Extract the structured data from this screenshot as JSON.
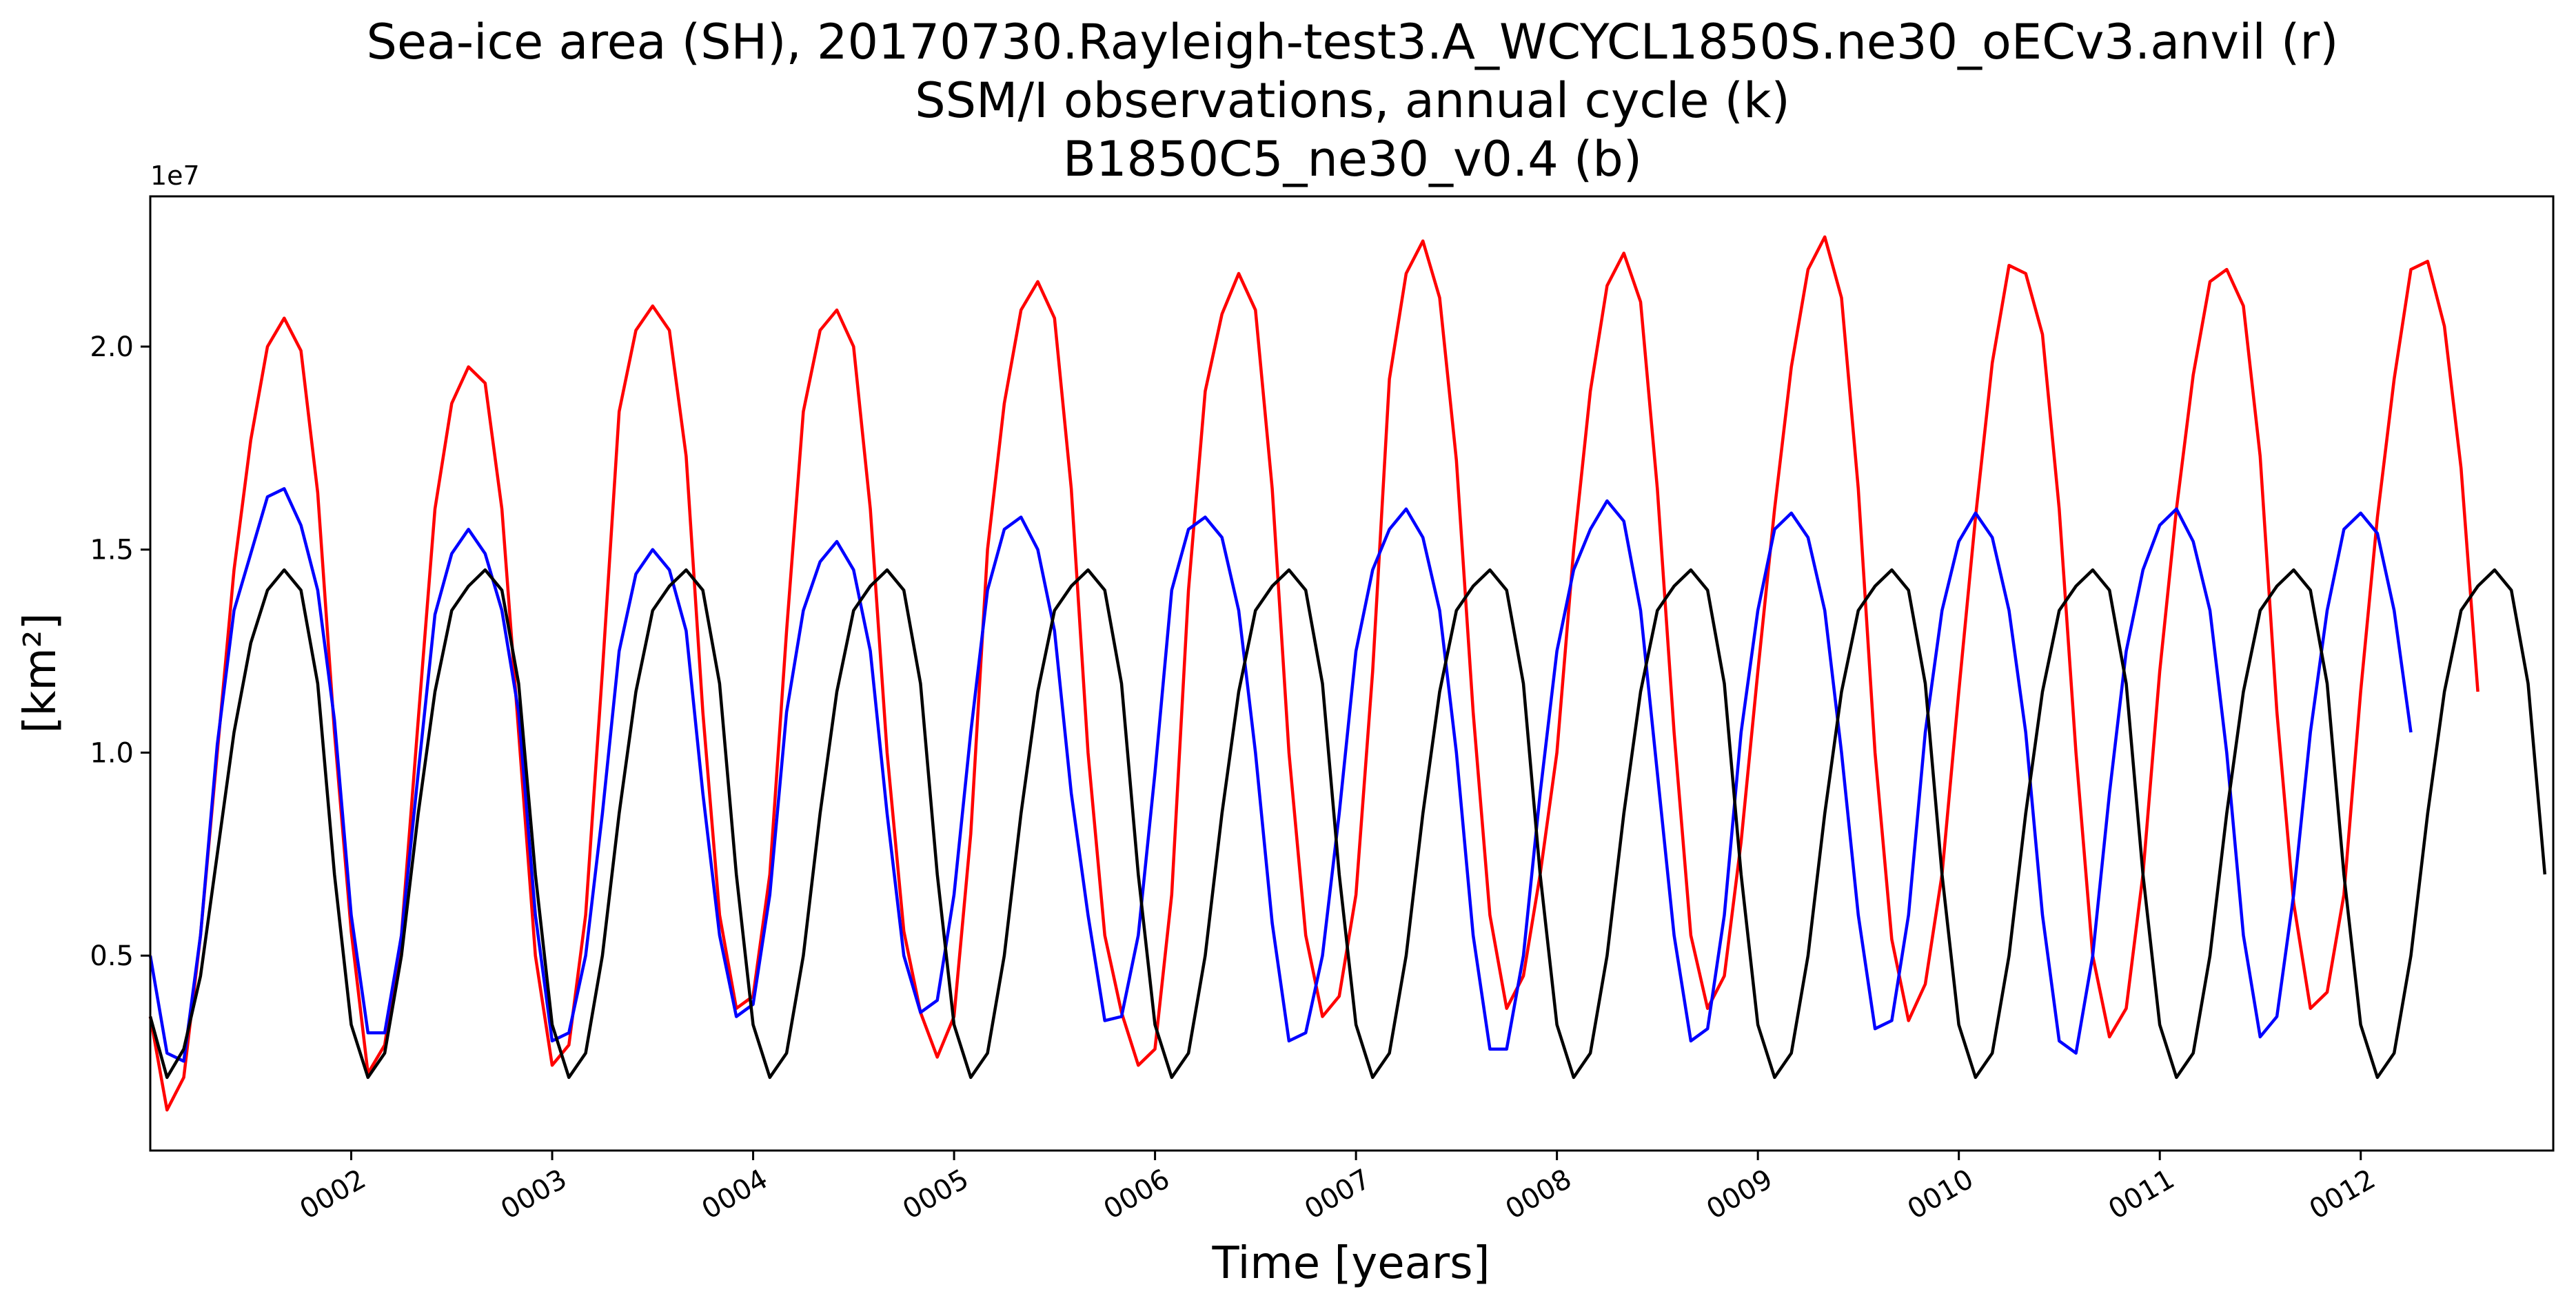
{
  "chart_data": {
    "type": "line",
    "title_lines": [
      "Sea-ice area (SH), 20170730.Rayleigh-test3.A_WCYCL1850S.ne30_oECv3.anvil (r)",
      "SSM/I observations, annual cycle (k)",
      "B1850C5_ne30_v0.4 (b)"
    ],
    "xlabel": "Time [years]",
    "ylabel": "[km²]",
    "y_offset_label": "1e7",
    "xlim": [
      1.0,
      12.958
    ],
    "ylim": [
      200000,
      23700000
    ],
    "x_ticks": [
      {
        "value": 2,
        "label": "0002"
      },
      {
        "value": 3,
        "label": "0003"
      },
      {
        "value": 4,
        "label": "0004"
      },
      {
        "value": 5,
        "label": "0005"
      },
      {
        "value": 6,
        "label": "0006"
      },
      {
        "value": 7,
        "label": "0007"
      },
      {
        "value": 8,
        "label": "0008"
      },
      {
        "value": 9,
        "label": "0009"
      },
      {
        "value": 10,
        "label": "0010"
      },
      {
        "value": 11,
        "label": "0011"
      },
      {
        "value": 12,
        "label": "0012"
      }
    ],
    "y_ticks": [
      {
        "value": 5000000,
        "label": "0.5"
      },
      {
        "value": 10000000,
        "label": "1.0"
      },
      {
        "value": 15000000,
        "label": "1.5"
      },
      {
        "value": 20000000,
        "label": "2.0"
      }
    ],
    "x_start": 1.0,
    "x_step": 0.08333,
    "series": [
      {
        "color": "#ff0000",
        "values": [
          3500000,
          1200000,
          2000000,
          5500000,
          10000000,
          14500000,
          17700000,
          20000000,
          20700000,
          19900000,
          16400000,
          10500000,
          5600000,
          2100000,
          2800000,
          5500000,
          10800000,
          16000000,
          18600000,
          19500000,
          19100000,
          16000000,
          10500000,
          5000000,
          2300000,
          2800000,
          6000000,
          12000000,
          18400000,
          20400000,
          21000000,
          20400000,
          17300000,
          11000000,
          6000000,
          3700000,
          4000000,
          7000000,
          13000000,
          18400000,
          20400000,
          20900000,
          20000000,
          16000000,
          10000000,
          5600000,
          3600000,
          2500000,
          3500000,
          8000000,
          15000000,
          18600000,
          20900000,
          21600000,
          20700000,
          16500000,
          10000000,
          5500000,
          3600000,
          2300000,
          2700000,
          6500000,
          14000000,
          18900000,
          20800000,
          21800000,
          20900000,
          16500000,
          10000000,
          5500000,
          3500000,
          4000000,
          6500000,
          12000000,
          19200000,
          21800000,
          22600000,
          21200000,
          17200000,
          11000000,
          6000000,
          3700000,
          4500000,
          7000000,
          10000000,
          15000000,
          18900000,
          21500000,
          22300000,
          21100000,
          16500000,
          10500000,
          5500000,
          3700000,
          4500000,
          7800000,
          12000000,
          16000000,
          19500000,
          21900000,
          22700000,
          21200000,
          16500000,
          10000000,
          5400000,
          3400000,
          4300000,
          7000000,
          11500000,
          15800000,
          19600000,
          22000000,
          21800000,
          20300000,
          16000000,
          10000000,
          5000000,
          3000000,
          3700000,
          7000000,
          12000000,
          16000000,
          19300000,
          21600000,
          21900000,
          21000000,
          17300000,
          11000000,
          6300000,
          3700000,
          4100000,
          6500000,
          11500000,
          15800000,
          19200000,
          21900000,
          22100000,
          20500000,
          17000000,
          11500000
        ]
      },
      {
        "color": "#0000ff",
        "values": [
          5000000,
          2600000,
          2400000,
          5500000,
          10200000,
          13500000,
          14900000,
          16300000,
          16500000,
          15600000,
          14000000,
          10800000,
          6000000,
          3100000,
          3100000,
          5500000,
          9500000,
          13400000,
          14900000,
          15500000,
          14900000,
          13500000,
          11000000,
          6000000,
          2900000,
          3100000,
          5000000,
          8500000,
          12500000,
          14400000,
          15000000,
          14500000,
          13000000,
          9000000,
          5500000,
          3500000,
          3800000,
          6500000,
          11000000,
          13500000,
          14700000,
          15200000,
          14500000,
          12500000,
          8500000,
          5000000,
          3600000,
          3900000,
          6500000,
          10500000,
          14000000,
          15500000,
          15800000,
          15000000,
          13000000,
          9000000,
          6000000,
          3400000,
          3500000,
          5500000,
          9500000,
          14000000,
          15500000,
          15800000,
          15300000,
          13500000,
          10000000,
          5800000,
          2900000,
          3100000,
          5000000,
          8500000,
          12500000,
          14500000,
          15500000,
          16000000,
          15300000,
          13500000,
          10000000,
          5500000,
          2700000,
          2700000,
          5000000,
          9000000,
          12500000,
          14500000,
          15500000,
          16200000,
          15700000,
          13500000,
          9500000,
          5500000,
          2900000,
          3200000,
          6000000,
          10500000,
          13500000,
          15500000,
          15900000,
          15300000,
          13500000,
          10000000,
          6000000,
          3200000,
          3400000,
          6000000,
          10500000,
          13500000,
          15200000,
          15900000,
          15300000,
          13500000,
          10500000,
          6000000,
          2900000,
          2600000,
          5000000,
          9000000,
          12500000,
          14500000,
          15600000,
          16000000,
          15200000,
          13500000,
          10000000,
          5500000,
          3000000,
          3500000,
          6500000,
          10500000,
          13500000,
          15500000,
          15900000,
          15400000,
          13500000,
          10500000
        ]
      },
      {
        "color": "#000000",
        "values": [
          3500000,
          2000000,
          2700000,
          4500000,
          7500000,
          10500000,
          12700000,
          14000000,
          14500000,
          14000000,
          11700000,
          7000000,
          3300000,
          2000000,
          2600000,
          5000000,
          8500000,
          11500000,
          13500000,
          14100000,
          14500000,
          14000000,
          11700000,
          7000000,
          3300000,
          2000000,
          2600000,
          5000000,
          8500000,
          11500000,
          13500000,
          14100000,
          14500000,
          14000000,
          11700000,
          7000000,
          3300000,
          2000000,
          2600000,
          5000000,
          8500000,
          11500000,
          13500000,
          14100000,
          14500000,
          14000000,
          11700000,
          7000000,
          3300000,
          2000000,
          2600000,
          5000000,
          8500000,
          11500000,
          13500000,
          14100000,
          14500000,
          14000000,
          11700000,
          7000000,
          3300000,
          2000000,
          2600000,
          5000000,
          8500000,
          11500000,
          13500000,
          14100000,
          14500000,
          14000000,
          11700000,
          7000000,
          3300000,
          2000000,
          2600000,
          5000000,
          8500000,
          11500000,
          13500000,
          14100000,
          14500000,
          14000000,
          11700000,
          7000000,
          3300000,
          2000000,
          2600000,
          5000000,
          8500000,
          11500000,
          13500000,
          14100000,
          14500000,
          14000000,
          11700000,
          7000000,
          3300000,
          2000000,
          2600000,
          5000000,
          8500000,
          11500000,
          13500000,
          14100000,
          14500000,
          14000000,
          11700000,
          7000000,
          3300000,
          2000000,
          2600000,
          5000000,
          8500000,
          11500000,
          13500000,
          14100000,
          14500000,
          14000000,
          11700000,
          7000000,
          3300000,
          2000000,
          2600000,
          5000000,
          8500000,
          11500000,
          13500000,
          14100000,
          14500000,
          14000000,
          11700000,
          7000000,
          3300000,
          2000000,
          2600000,
          5000000,
          8500000,
          11500000,
          13500000,
          14100000,
          14500000,
          14000000,
          11700000,
          7000000
        ]
      }
    ]
  }
}
